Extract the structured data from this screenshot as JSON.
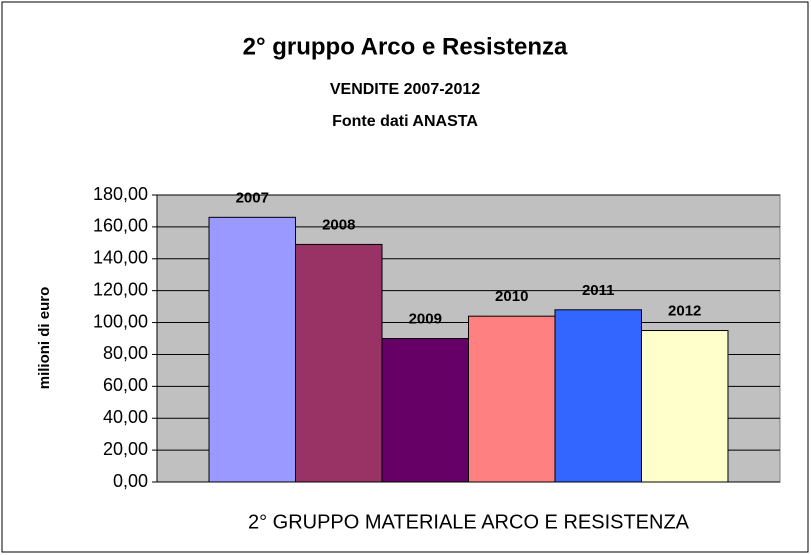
{
  "chart_data": {
    "type": "bar",
    "title": "2° gruppo Arco e Resistenza",
    "subtitle": "VENDITE 2007-2012",
    "source": "Fonte dati ANASTA",
    "y_label": "milioni di euro",
    "categories": [
      "2° GRUPPO MATERIALE ARCO E RESISTENZA"
    ],
    "series": [
      {
        "name": "2007",
        "color": "#9999ff",
        "values": [
          166
        ]
      },
      {
        "name": "2008",
        "color": "#993366",
        "values": [
          149
        ]
      },
      {
        "name": "2009",
        "color": "#660066",
        "values": [
          90
        ]
      },
      {
        "name": "2010",
        "color": "#ff8080",
        "values": [
          104
        ]
      },
      {
        "name": "2011",
        "color": "#3366ff",
        "values": [
          108
        ]
      },
      {
        "name": "2012",
        "color": "#ffffcc",
        "values": [
          95
        ]
      }
    ],
    "ylim": [
      0,
      180
    ],
    "yticks": [
      {
        "value": 0,
        "label": "0,00"
      },
      {
        "value": 20,
        "label": "20,00"
      },
      {
        "value": 40,
        "label": "40,00"
      },
      {
        "value": 60,
        "label": "60,00"
      },
      {
        "value": 80,
        "label": "80,00"
      },
      {
        "value": 100,
        "label": "100,00"
      },
      {
        "value": 120,
        "label": "120,00"
      },
      {
        "value": 140,
        "label": "140,00"
      },
      {
        "value": 160,
        "label": "160,00"
      },
      {
        "value": 180,
        "label": "180,00"
      }
    ],
    "grid": true,
    "plot_background": "#c0c0c0"
  }
}
